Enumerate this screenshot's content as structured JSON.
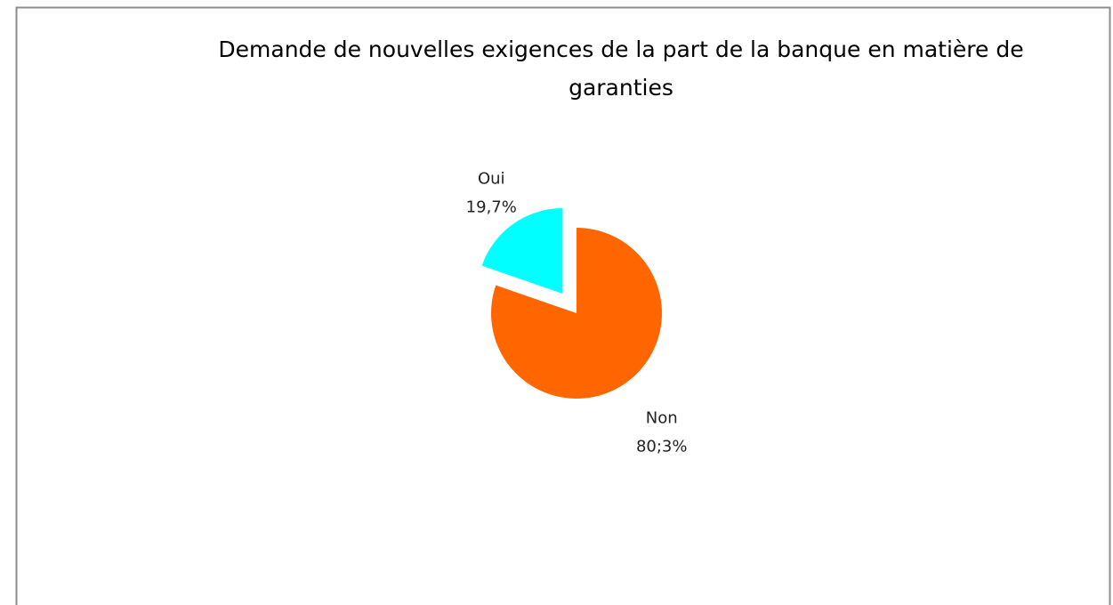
{
  "chart_data": {
    "type": "pie",
    "title": "Demande de nouvelles exigences de la part de la banque en matière de garanties",
    "categories": [
      "Oui",
      "Non"
    ],
    "values": [
      19.7,
      80.3
    ],
    "value_labels": [
      "19,7%",
      "80;3%"
    ],
    "colors": [
      "#00ffff",
      "#ff6600"
    ],
    "explode": [
      true,
      false
    ]
  }
}
